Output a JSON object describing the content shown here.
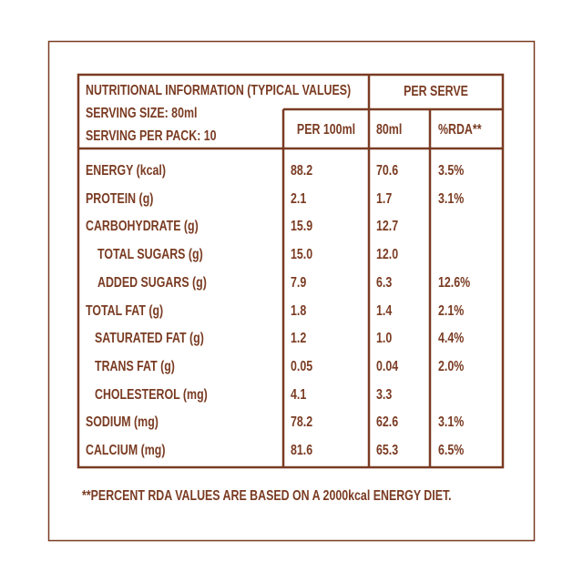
{
  "header": {
    "title": "NUTRITIONAL INFORMATION (TYPICAL VALUES)",
    "serving_size": "SERVING SIZE: 80ml",
    "serving_per_pack": "SERVING PER PACK: 10",
    "per_serve": "PER SERVE",
    "columns": [
      "PER 100ml",
      "80ml",
      "%RDA**"
    ]
  },
  "table": {
    "rows": [
      [
        "ENERGY (kcal)",
        "88.2",
        "70.6",
        "3.5%"
      ],
      [
        "PROTEIN (g)",
        "2.1",
        "1.7",
        "3.1%"
      ],
      [
        "CARBOHYDRATE (g)",
        "15.9",
        "12.7",
        null
      ],
      [
        "TOTAL SUGARS (g)",
        "15.0",
        "12.0",
        null
      ],
      [
        "ADDED SUGARS (g)",
        "7.9",
        "6.3",
        "12.6%"
      ],
      [
        "TOTAL FAT (g)",
        "1.8",
        "1.4",
        "2.1%"
      ],
      [
        "SATURATED FAT (g)",
        "1.2",
        "1.0",
        "4.4%"
      ],
      [
        "TRANS FAT (g)",
        "0.05",
        "0.04",
        "2.0%"
      ],
      [
        "CHOLESTEROL (mg)",
        "4.1",
        "3.3",
        null
      ],
      [
        "SODIUM (mg)",
        "78.2",
        "62.6",
        "3.1%"
      ],
      [
        "CALCIUM (mg)",
        "81.6",
        "65.3",
        "6.5%"
      ]
    ]
  },
  "footnote": "**PERCENT RDA VALUES ARE BASED ON A 2000kcal ENERGY DIET."
}
